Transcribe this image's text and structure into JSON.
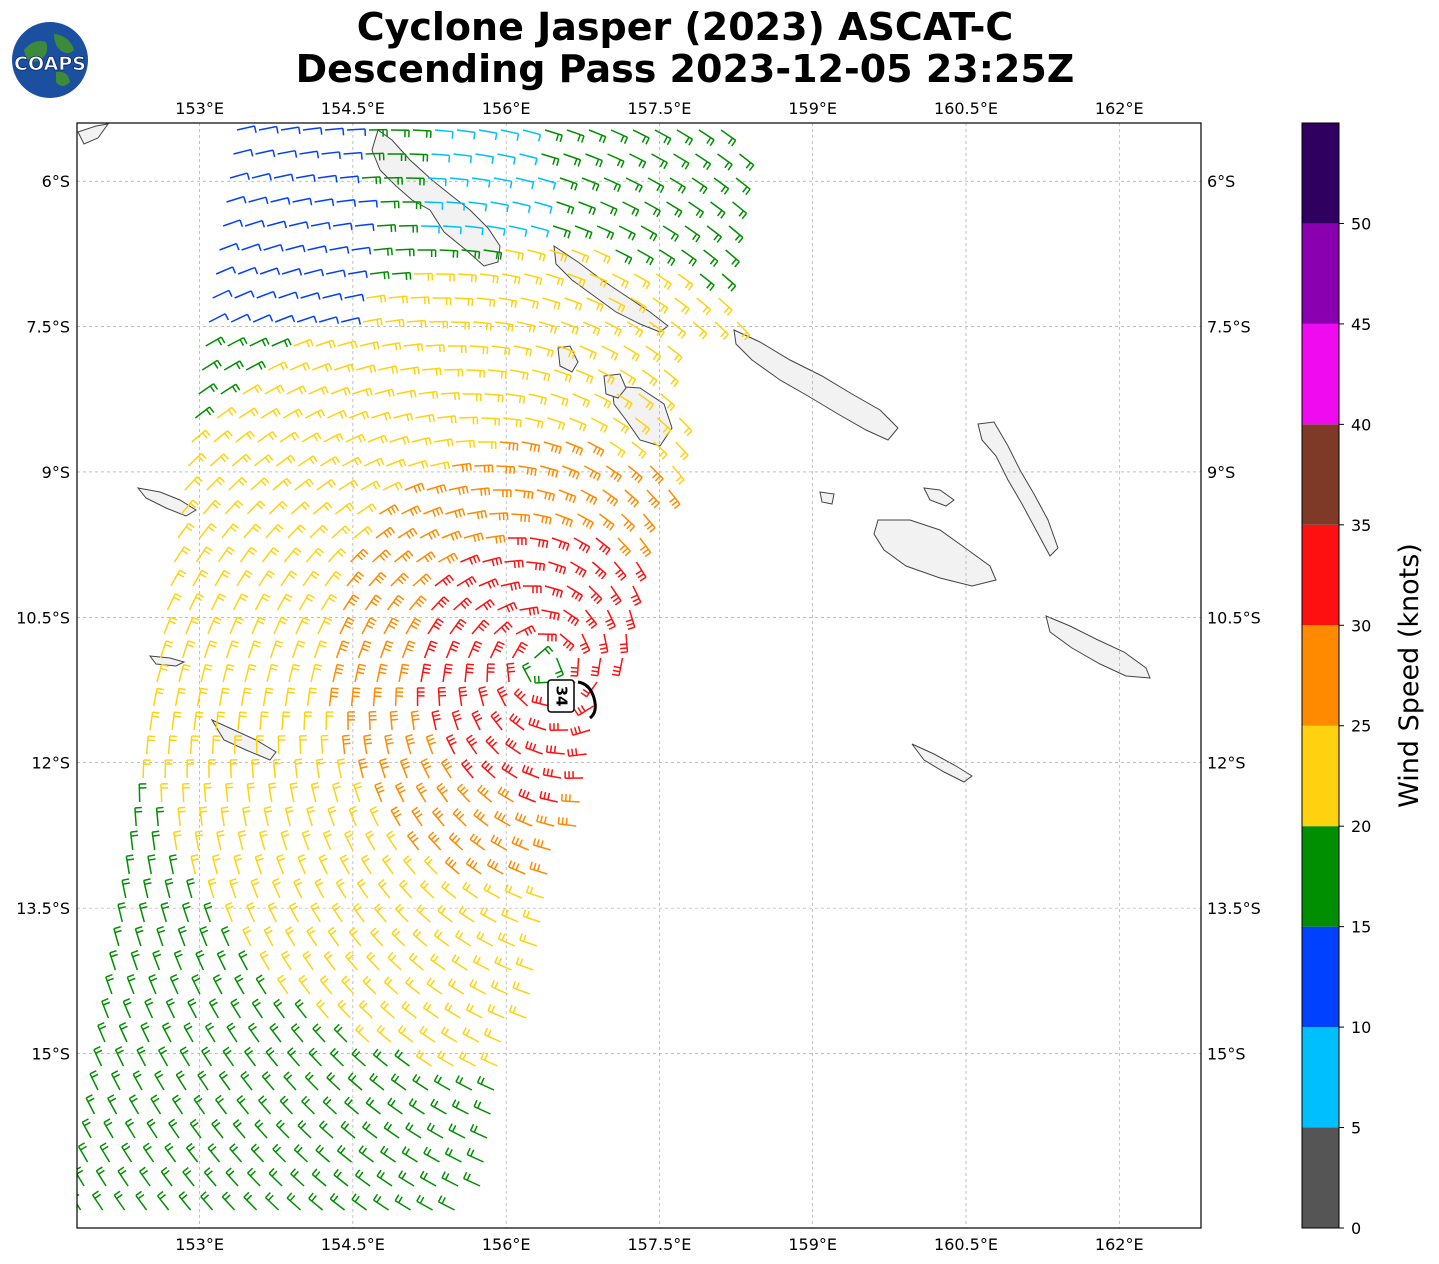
{
  "title": {
    "line1": "Cyclone Jasper (2023) ASCAT-C",
    "line2": "Descending Pass 2023-12-05 23:25Z"
  },
  "logo": {
    "text": "COAPS",
    "icon": "globe-icon"
  },
  "map": {
    "lon_range": [
      151.8,
      162.8
    ],
    "lat_range": [
      -16.8,
      -5.4
    ],
    "lon_ticks": [
      "153°E",
      "154.5°E",
      "156°E",
      "157.5°E",
      "159°E",
      "160.5°E",
      "162°E"
    ],
    "lat_ticks": [
      "6°S",
      "7.5°S",
      "9°S",
      "10.5°S",
      "12°S",
      "13.5°S",
      "15°S"
    ],
    "gridlines": true,
    "land_color": "#f2f2f2",
    "coast_color": "#444444"
  },
  "cyclone": {
    "label": "34",
    "lon": 156.4,
    "lat": -11.0
  },
  "colorbar": {
    "label": "Wind Speed (knots)",
    "ticks": [
      "0",
      "5",
      "10",
      "15",
      "20",
      "25",
      "30",
      "35",
      "40",
      "45",
      "50"
    ],
    "bins": [
      {
        "min": 0,
        "max": 5,
        "color": "#555555"
      },
      {
        "min": 5,
        "max": 10,
        "color": "#00bfff"
      },
      {
        "min": 10,
        "max": 15,
        "color": "#0040ff"
      },
      {
        "min": 15,
        "max": 20,
        "color": "#008f00"
      },
      {
        "min": 20,
        "max": 25,
        "color": "#ffd20f"
      },
      {
        "min": 25,
        "max": 30,
        "color": "#ff8a00"
      },
      {
        "min": 30,
        "max": 35,
        "color": "#ff1010"
      },
      {
        "min": 35,
        "max": 40,
        "color": "#7f3a27"
      },
      {
        "min": 40,
        "max": 45,
        "color": "#f00af0"
      },
      {
        "min": 45,
        "max": 50,
        "color": "#8a00b0"
      },
      {
        "min": 50,
        "max": 55,
        "color": "#2f0060"
      }
    ]
  }
}
